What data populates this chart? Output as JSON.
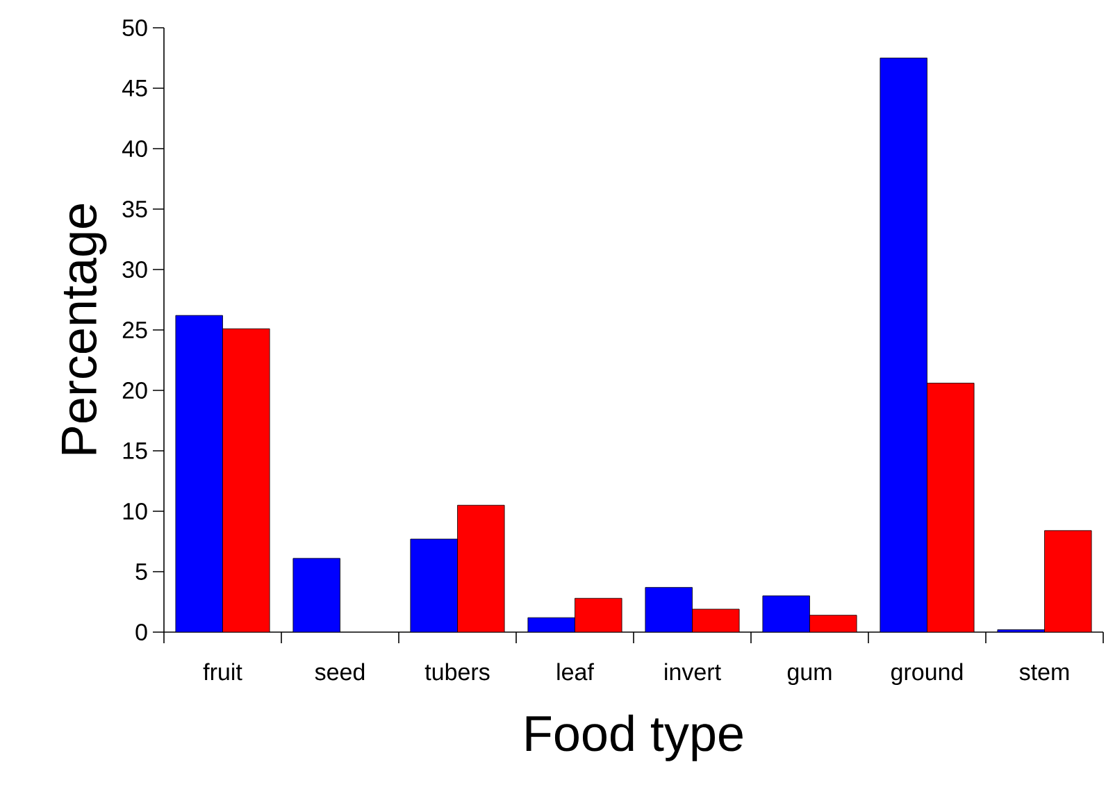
{
  "chart_data": {
    "type": "bar",
    "xlabel": "Food type",
    "ylabel": "Percentage",
    "categories": [
      "fruit",
      "seed",
      "tubers",
      "leaf",
      "invert",
      "gum",
      "ground",
      "stem"
    ],
    "series": [
      {
        "color": "#0000ff",
        "values": [
          26.2,
          6.1,
          7.7,
          1.2,
          3.7,
          3.0,
          47.5,
          0.2
        ]
      },
      {
        "color": "#ff0000",
        "values": [
          25.1,
          null,
          10.5,
          2.8,
          1.9,
          1.4,
          20.6,
          8.4
        ]
      }
    ],
    "ylim": [
      0,
      50
    ],
    "yticks": [
      0,
      5,
      10,
      15,
      20,
      25,
      30,
      35,
      40,
      45,
      50
    ]
  }
}
